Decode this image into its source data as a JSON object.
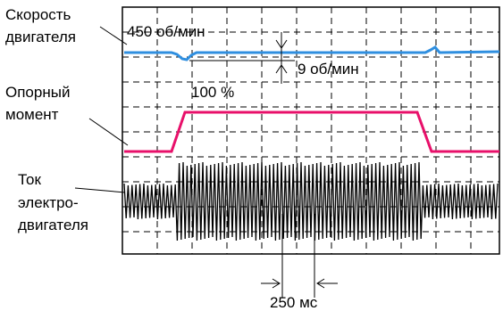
{
  "labels": {
    "speed": [
      "Скорость",
      "двигателя"
    ],
    "torque": [
      "Опорный",
      "момент"
    ],
    "current": [
      "Ток",
      "электро-",
      "двигателя"
    ]
  },
  "annotations": {
    "speed_value": "450 об/мин",
    "speed_dip": "9 об/мин",
    "torque_value": "100 %",
    "time_interval": "250 мс"
  },
  "colors": {
    "speed_trace": "#2f8fe0",
    "torque_trace": "#e8106a",
    "current_trace": "#000000",
    "grid": "#000000"
  }
}
